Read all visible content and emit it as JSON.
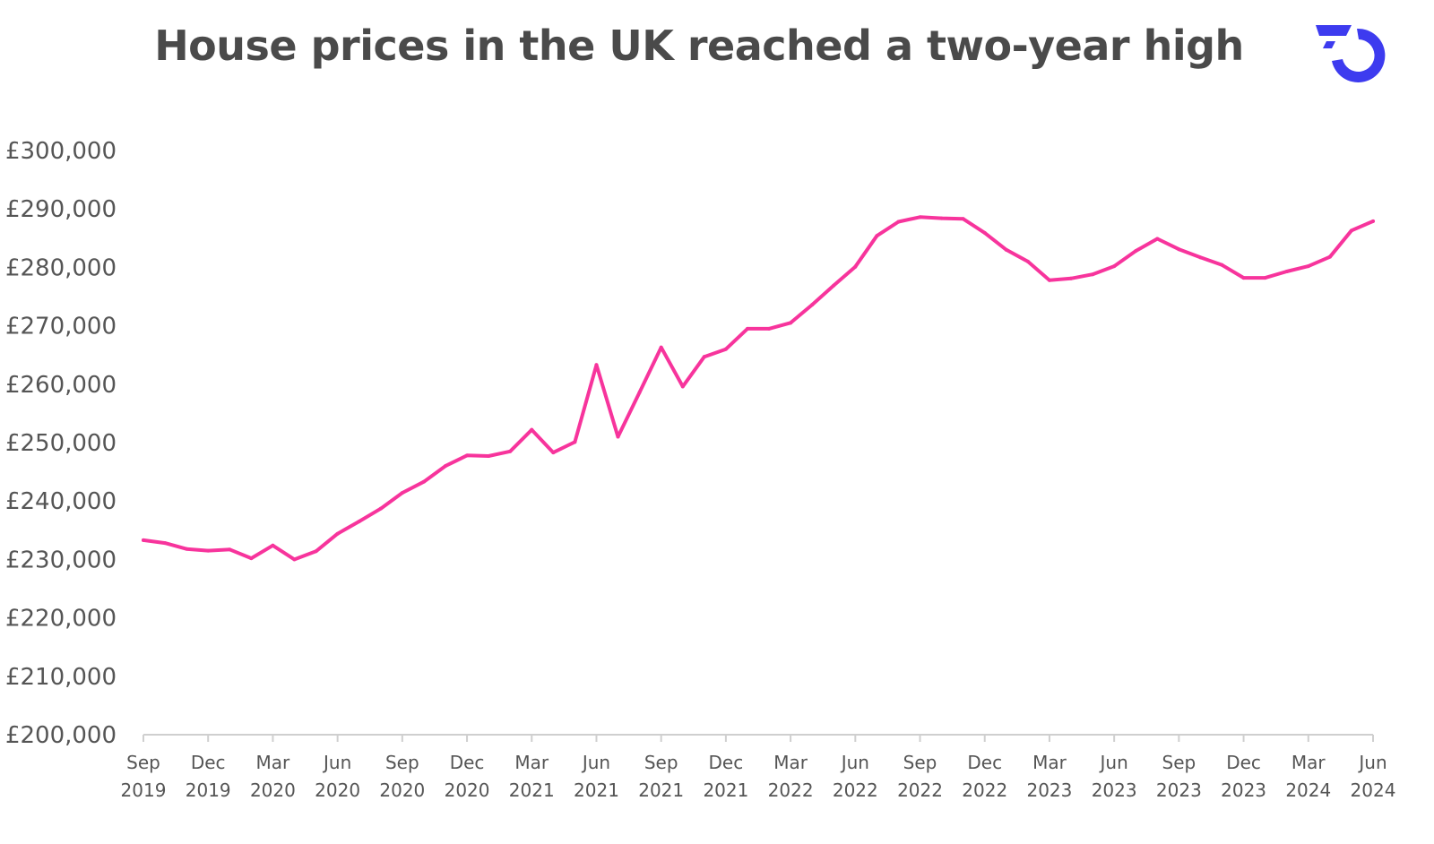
{
  "title": "House prices in the UK reached a two-year high",
  "logo_icon": "brand-logo-icon",
  "colors": {
    "line": "#F7349C",
    "title": "#4a4a4a",
    "axis": "#cfcfcf",
    "logo": "#3D3BEF"
  },
  "chart_data": {
    "type": "line",
    "title": "House prices in the UK reached a two-year high",
    "xlabel": "",
    "ylabel": "",
    "ylim": [
      200000,
      300000
    ],
    "grid": false,
    "legend": "none",
    "y_ticks": [
      "£200,000",
      "£210,000",
      "£220,000",
      "£230,000",
      "£240,000",
      "£250,000",
      "£260,000",
      "£270,000",
      "£280,000",
      "£290,000",
      "£300,000"
    ],
    "x_ticks": [
      {
        "month": "Sep",
        "year": "2019"
      },
      {
        "month": "Dec",
        "year": "2019"
      },
      {
        "month": "Mar",
        "year": "2020"
      },
      {
        "month": "Jun",
        "year": "2020"
      },
      {
        "month": "Sep",
        "year": "2020"
      },
      {
        "month": "Dec",
        "year": "2020"
      },
      {
        "month": "Mar",
        "year": "2021"
      },
      {
        "month": "Jun",
        "year": "2021"
      },
      {
        "month": "Sep",
        "year": "2021"
      },
      {
        "month": "Dec",
        "year": "2021"
      },
      {
        "month": "Mar",
        "year": "2022"
      },
      {
        "month": "Jun",
        "year": "2022"
      },
      {
        "month": "Sep",
        "year": "2022"
      },
      {
        "month": "Dec",
        "year": "2022"
      },
      {
        "month": "Mar",
        "year": "2023"
      },
      {
        "month": "Jun",
        "year": "2023"
      },
      {
        "month": "Sep",
        "year": "2023"
      },
      {
        "month": "Dec",
        "year": "2023"
      },
      {
        "month": "Mar",
        "year": "2024"
      },
      {
        "month": "Jun",
        "year": "2024"
      }
    ],
    "x": [
      "2019-09",
      "2019-10",
      "2019-11",
      "2019-12",
      "2020-01",
      "2020-02",
      "2020-03",
      "2020-04",
      "2020-05",
      "2020-06",
      "2020-07",
      "2020-08",
      "2020-09",
      "2020-10",
      "2020-11",
      "2020-12",
      "2021-01",
      "2021-02",
      "2021-03",
      "2021-04",
      "2021-05",
      "2021-06",
      "2021-07",
      "2021-08",
      "2021-09",
      "2021-10",
      "2021-11",
      "2021-12",
      "2022-01",
      "2022-02",
      "2022-03",
      "2022-04",
      "2022-05",
      "2022-06",
      "2022-07",
      "2022-08",
      "2022-09",
      "2022-10",
      "2022-11",
      "2022-12",
      "2023-01",
      "2023-02",
      "2023-03",
      "2023-04",
      "2023-05",
      "2023-06",
      "2023-07",
      "2023-08",
      "2023-09",
      "2023-10",
      "2023-11",
      "2023-12",
      "2024-01",
      "2024-02",
      "2024-03",
      "2024-04",
      "2024-05",
      "2024-06"
    ],
    "series": [
      {
        "values": [
          233300,
          232800,
          231800,
          231500,
          231700,
          230200,
          232400,
          230000,
          231400,
          234400,
          236500,
          238700,
          241400,
          243300,
          246000,
          247800,
          247700,
          248500,
          252200,
          248300,
          250100,
          263300,
          251000,
          258600,
          266300,
          259600,
          264700,
          266000,
          269500,
          269500,
          270500,
          273600,
          276900,
          280100,
          285400,
          287800,
          288600,
          288400,
          288300,
          285900,
          283000,
          281000,
          277800,
          278100,
          278800,
          280200,
          282800,
          284900,
          283100,
          281700,
          280400,
          278200,
          278200,
          279300,
          280200,
          281800,
          286300,
          287900
        ]
      }
    ]
  }
}
